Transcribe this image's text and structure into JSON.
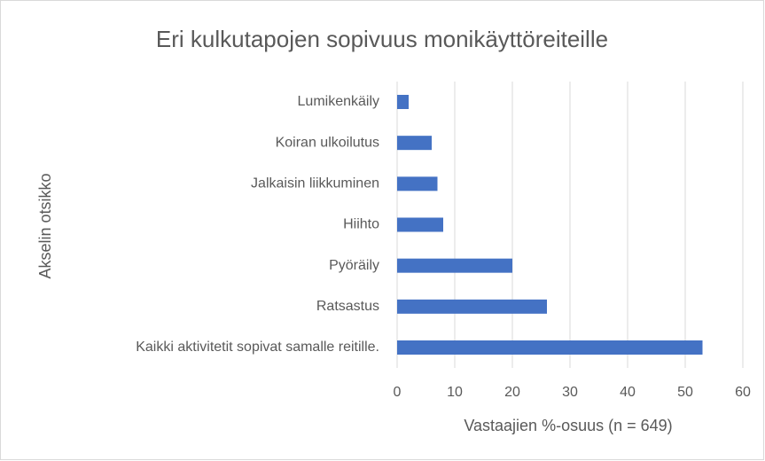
{
  "chart_data": {
    "type": "bar",
    "orientation": "horizontal",
    "title": "Eri kulkutapojen sopivuus monikäyttöreiteille",
    "x_label": "Vastaajien %-osuus (n = 649)",
    "y_label": "Akselin otsikko",
    "categories": [
      "Lumikenkäily",
      "Koiran ulkoilutus",
      "Jalkaisin liikkuminen",
      "Hiihto",
      "Pyöräily",
      "Ratsastus",
      "Kaikki aktivitetit sopivat samalle reitille."
    ],
    "values": [
      2,
      6,
      7,
      8,
      20,
      26,
      53
    ],
    "color": "#4472c4",
    "xlim": [
      0,
      60
    ],
    "xticks": [
      0,
      10,
      20,
      30,
      40,
      50,
      60
    ],
    "grid": true
  }
}
